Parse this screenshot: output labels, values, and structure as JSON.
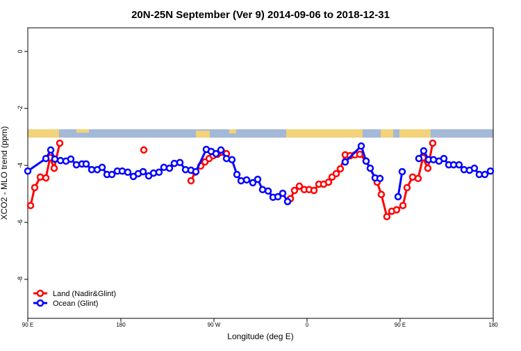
{
  "chart_data": {
    "type": "line",
    "title": "20N-25N September (Ver 9)   2014-09-06 to 2018-12-31",
    "x_label": "Longitude (deg E)",
    "y_label": "XCO2 - MLO trend (ppm)",
    "xlim": [
      90,
      540
    ],
    "ylim": [
      -9.37,
      0.83
    ],
    "xticks": [
      {
        "value": 90,
        "label": "90 E"
      },
      {
        "value": 180,
        "label": "180"
      },
      {
        "value": 270,
        "label": "90 W"
      },
      {
        "value": 360,
        "label": "0"
      },
      {
        "value": 450,
        "label": "90 E"
      },
      {
        "value": 540,
        "label": "180"
      }
    ],
    "yticks": [
      0,
      -2,
      -4,
      -6,
      -8
    ],
    "legend": "bottom-left",
    "series": [
      {
        "name": "Land (Nadir&Glint)",
        "color": "#ff0000",
        "x": [
          92.7,
          96.7,
          102.1,
          107.5,
          111.5,
          115.5,
          120.9,
          null,
          202.2,
          null,
          247.8,
          251.9,
          257.2,
          261.3,
          265.3,
          269.3,
          273.4,
          278.1,
          282.1,
          null,
          343.9,
          347.9,
          352.6,
          357.3,
          362.0,
          366.7,
          371.4,
          376.1,
          380.8,
          384.2,
          388.2,
          392.2,
          396.9,
          401.6,
          406.3,
          411.0,
          417.1,
          427.8,
          431.8,
          437.2,
          441.9,
          446.6,
          452.7,
          456.7,
          462.1,
          467.4,
          472.1,
          476.8,
          481.5
        ],
        "values": [
          -5.41,
          -4.78,
          -4.41,
          -4.44,
          -3.73,
          -4.1,
          -3.22,
          null,
          -3.46,
          null,
          -4.54,
          -4.24,
          -4.02,
          -3.88,
          -3.76,
          -3.66,
          -3.61,
          -3.54,
          -3.59,
          null,
          -5.17,
          -4.88,
          -4.73,
          -4.85,
          -4.85,
          -4.88,
          -4.66,
          -4.66,
          -4.59,
          -4.41,
          -4.29,
          -4.12,
          -3.63,
          -3.66,
          -3.63,
          -3.61,
          -3.85,
          -4.59,
          -5.02,
          -5.8,
          -5.61,
          -5.56,
          -5.41,
          -4.78,
          -4.41,
          -4.46,
          -3.73,
          -4.1,
          -3.22
        ]
      },
      {
        "name": "Ocean (Glint)",
        "color": "#0000ff",
        "x": [
          90.0,
          107.5,
          112.2,
          116.2,
          121.6,
          126.9,
          131.6,
          137.0,
          142.4,
          146.4,
          151.8,
          157.2,
          161.9,
          166.6,
          171.3,
          176.6,
          181.3,
          186.7,
          192.1,
          196.8,
          201.5,
          206.9,
          211.6,
          216.9,
          221.6,
          227.0,
          231.7,
          237.1,
          242.5,
          247.8,
          252.5,
          262.6,
          267.3,
          272.0,
          276.7,
          282.1,
          287.4,
          292.2,
          296.2,
          301.6,
          307.6,
          312.3,
          317.0,
          322.4,
          327.1,
          331.8,
          336.5,
          341.2,
          null,
          396.9,
          412.4,
          417.1,
          421.1,
          425.8,
          430.5,
          null,
          448.0,
          452.0,
          null,
          468.1,
          472.8,
          477.5,
          482.2,
          487.6,
          492.3,
          497.0,
          501.7,
          507.0,
          511.8,
          517.1,
          521.8,
          526.5,
          531.9,
          537.3
        ],
        "values": [
          -4.2,
          -3.76,
          -3.46,
          -3.78,
          -3.83,
          -3.85,
          -3.78,
          -3.98,
          -3.95,
          -3.95,
          -4.15,
          -4.15,
          -4.07,
          -4.32,
          -4.32,
          -4.2,
          -4.2,
          -4.24,
          -4.39,
          -4.29,
          -4.22,
          -4.37,
          -4.27,
          -4.24,
          -4.07,
          -4.1,
          -3.93,
          -3.9,
          -4.15,
          -4.17,
          -4.22,
          -3.44,
          -3.51,
          -3.59,
          -3.46,
          -3.76,
          -3.8,
          -4.32,
          -4.54,
          -4.51,
          -4.61,
          -4.49,
          -4.85,
          -4.9,
          -5.12,
          -5.1,
          -4.98,
          -5.27,
          null,
          -3.88,
          -3.32,
          -3.85,
          -4.1,
          -4.44,
          -4.46,
          null,
          -5.1,
          -4.22,
          null,
          -3.76,
          -3.49,
          -3.8,
          -3.8,
          -3.85,
          -3.76,
          -3.98,
          -3.98,
          -3.98,
          -4.15,
          -4.17,
          -4.1,
          -4.32,
          -4.32,
          -4.2
        ]
      }
    ]
  }
}
